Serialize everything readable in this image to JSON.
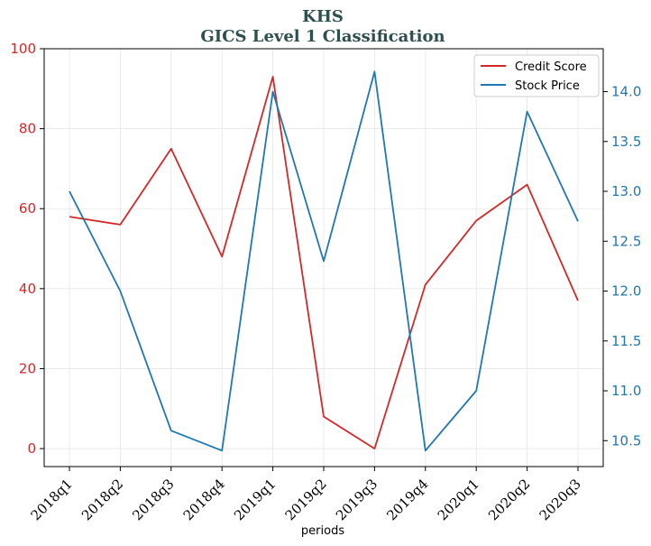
{
  "chart_data": {
    "type": "line",
    "title": "KHS",
    "subtitle": "GICS Level 1 Classification",
    "xlabel": "periods",
    "categories": [
      "2018q1",
      "2018q2",
      "2018q3",
      "2018q4",
      "2019q1",
      "2019q2",
      "2019q3",
      "2019q4",
      "2020q1",
      "2020q2",
      "2020q3"
    ],
    "series": [
      {
        "name": "Credit Score",
        "axis": "left",
        "color": "#d62728",
        "values": [
          58,
          56,
          75,
          48,
          93,
          8,
          0,
          41,
          57,
          66,
          37
        ]
      },
      {
        "name": "Stock Price",
        "axis": "right",
        "color": "#1f77b4",
        "values": [
          13.0,
          12.0,
          10.6,
          10.4,
          14.0,
          12.3,
          14.2,
          10.4,
          11.0,
          13.8,
          12.7
        ]
      }
    ],
    "y_left": {
      "ylim": [
        -4.5,
        100
      ],
      "ticks": [
        "0",
        "20",
        "40",
        "60",
        "80",
        "100"
      ],
      "color": "#d62728"
    },
    "y_right": {
      "ylim": [
        10.24,
        14.43
      ],
      "ticks": [
        "10.5",
        "11.0",
        "11.5",
        "12.0",
        "12.5",
        "13.0",
        "13.5",
        "14.0"
      ],
      "color": "#1f77b4"
    },
    "grid": true,
    "legend_position": "top-right",
    "title_color": "#2f4f4f"
  }
}
